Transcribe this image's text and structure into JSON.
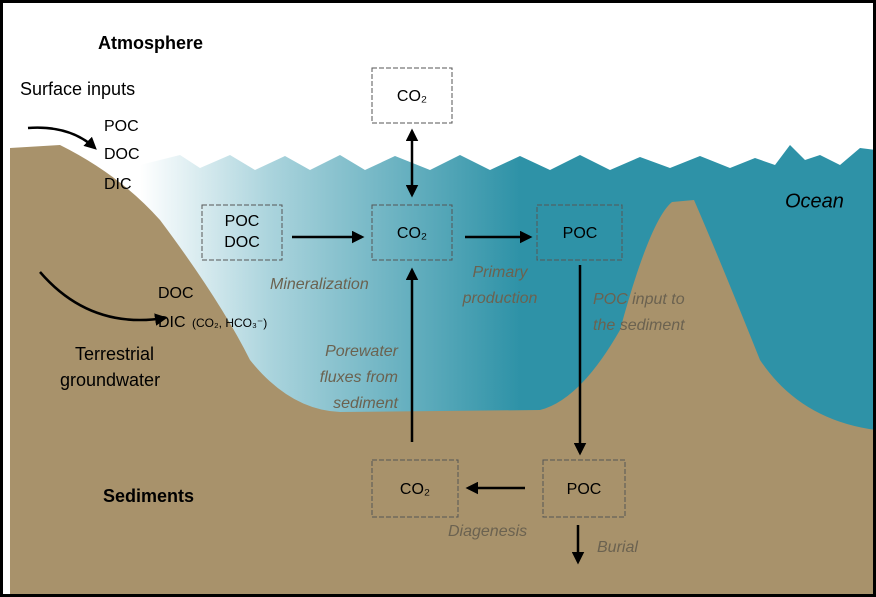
{
  "regions": {
    "atmosphere": "Atmosphere",
    "ocean": "Ocean",
    "sediments": "Sediments"
  },
  "inputs": {
    "surface": {
      "title": "Surface inputs",
      "items": [
        "POC",
        "DOC",
        "DIC"
      ]
    },
    "groundwater": {
      "title": [
        "Terrestrial",
        "groundwater"
      ],
      "items": [
        "DOC",
        "DIC"
      ],
      "detail": "(CO₂, HCO₃⁻)"
    }
  },
  "boxes": {
    "co2_air": "CO₂",
    "poc_doc": [
      "POC",
      "DOC"
    ],
    "co2_water": "CO₂",
    "poc_water": "POC",
    "co2_sediment": "CO₂",
    "poc_sediment": "POC"
  },
  "processes": {
    "mineralization": "Mineralization",
    "primary_production": [
      "Primary",
      "production"
    ],
    "poc_input": [
      "POC input to",
      "the sediment"
    ],
    "porewater": [
      "Porewater",
      "fluxes from",
      "sediment"
    ],
    "diagenesis": "Diagenesis",
    "burial": "Burial"
  }
}
